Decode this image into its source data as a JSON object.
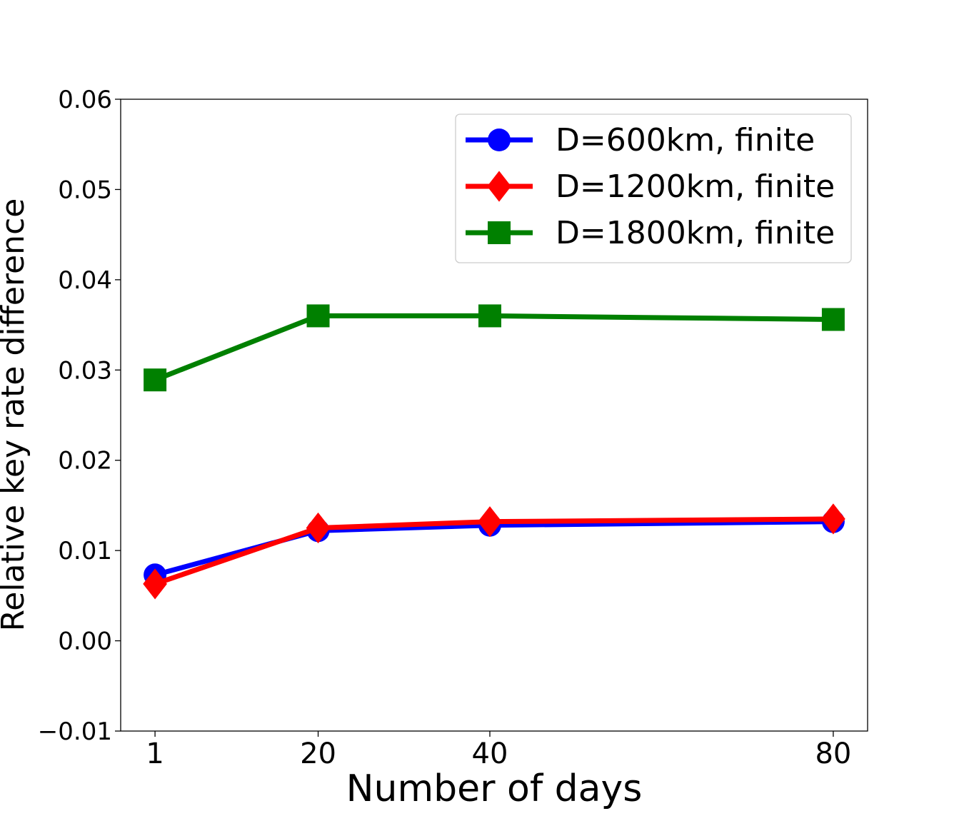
{
  "chart_data": {
    "type": "line",
    "title": "",
    "xlabel": "Number of days",
    "ylabel": "Relative key rate difference",
    "x": [
      1,
      20,
      40,
      80
    ],
    "xticks": [
      1,
      20,
      40,
      80
    ],
    "xtick_labels": [
      "1",
      "20",
      "40",
      "80"
    ],
    "xlim": [
      -3,
      84
    ],
    "ylim": [
      -0.01,
      0.06
    ],
    "yticks": [
      -0.01,
      0.0,
      0.01,
      0.02,
      0.03,
      0.04,
      0.05,
      0.06
    ],
    "ytick_labels": [
      "−0.01",
      "0.00",
      "0.01",
      "0.02",
      "0.03",
      "0.04",
      "0.05",
      "0.06"
    ],
    "grid": false,
    "legend_position": "top-right",
    "series": [
      {
        "name": "D=600km, finite",
        "color": "#0000ff",
        "marker": "circle",
        "values": [
          0.0073,
          0.0122,
          0.0128,
          0.0132
        ]
      },
      {
        "name": "D=1200km, finite",
        "color": "#ff0000",
        "marker": "diamond",
        "values": [
          0.0063,
          0.0125,
          0.0132,
          0.0135
        ]
      },
      {
        "name": "D=1800km, finite",
        "color": "#008000",
        "marker": "square",
        "values": [
          0.0289,
          0.036,
          0.036,
          0.0356
        ]
      }
    ]
  }
}
